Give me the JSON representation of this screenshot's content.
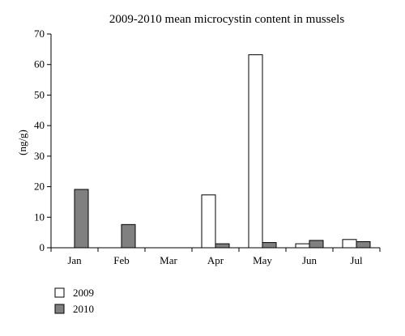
{
  "chart_data": {
    "type": "bar",
    "title": "2009-2010 mean microcystin content in mussels",
    "xlabel": "",
    "ylabel": "(ng/g)",
    "ylim": [
      0,
      70
    ],
    "yticks": [
      0,
      10,
      20,
      30,
      40,
      50,
      60,
      70
    ],
    "categories": [
      "Jan",
      "Feb",
      "Mar",
      "Apr",
      "May",
      "Jun",
      "Jul"
    ],
    "series": [
      {
        "name": "2009",
        "color": "#ffffff",
        "values": [
          0,
          0,
          0,
          17.3,
          63.2,
          1.3,
          2.7
        ]
      },
      {
        "name": "2010",
        "color": "#808080",
        "values": [
          19.1,
          7.6,
          0,
          1.3,
          1.7,
          2.4,
          2.0
        ]
      }
    ],
    "legend_position": "bottom-left",
    "grid": false
  }
}
